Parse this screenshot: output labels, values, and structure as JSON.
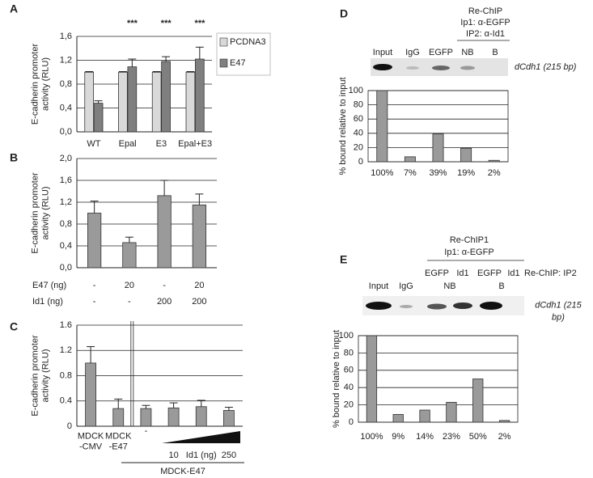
{
  "chart_data": [
    {
      "type": "bar",
      "panel": "A",
      "y_label": "E-cadherin promoter activity (RLU)",
      "categories": [
        "WT",
        "Epal",
        "E3",
        "Epal+E3"
      ],
      "series": [
        {
          "name": "PCDNA3",
          "color": "#d9d9d9",
          "values": [
            1.0,
            1.0,
            1.0,
            1.0
          ],
          "errors": [
            0.01,
            0.01,
            0.01,
            0.01
          ]
        },
        {
          "name": "E47",
          "color": "#7f7f7f",
          "values": [
            0.48,
            1.09,
            1.18,
            1.22
          ],
          "errors": [
            0.04,
            0.13,
            0.08,
            0.2
          ]
        }
      ],
      "significance": [
        null,
        "***",
        "***",
        "***"
      ],
      "ylim": [
        0,
        1.6
      ],
      "yticks": [
        {
          "value": 0,
          "label": "0,0"
        },
        {
          "value": 0.4,
          "label": "0,4"
        },
        {
          "value": 0.8,
          "label": "0,8"
        },
        {
          "value": 1.2,
          "label": "1,2"
        },
        {
          "value": 1.6,
          "label": "1,6"
        }
      ],
      "grid": true
    },
    {
      "type": "bar",
      "panel": "B",
      "y_label": "E-cadherin promoter activity (RLU)",
      "values": [
        1.0,
        0.46,
        1.32,
        1.15
      ],
      "errors": [
        0.22,
        0.1,
        0.28,
        0.2
      ],
      "color": "#9a9a9a",
      "conditions": [
        {
          "label": "E47 (ng)",
          "values": [
            "-",
            "20",
            "-",
            "20"
          ]
        },
        {
          "label": "Id1 (ng)",
          "values": [
            "-",
            "-",
            "200",
            "200"
          ]
        }
      ],
      "ylim": [
        0,
        2.0
      ],
      "yticks": [
        {
          "value": 0,
          "label": "0,0"
        },
        {
          "value": 0.4,
          "label": "0,4"
        },
        {
          "value": 0.8,
          "label": "0,8"
        },
        {
          "value": 1.2,
          "label": "1,2"
        },
        {
          "value": 1.6,
          "label": "1,6"
        },
        {
          "value": 2.0,
          "label": "2,0"
        }
      ],
      "grid": true
    },
    {
      "type": "bar",
      "panel": "C",
      "y_label": "E-cadherin promoter activity (RLU)",
      "categories": [
        "MDCK -CMV",
        "MDCK -E47",
        "-",
        "10",
        null,
        "250"
      ],
      "values": [
        1.0,
        0.28,
        0.28,
        0.29,
        0.31,
        0.25
      ],
      "errors": [
        0.26,
        0.15,
        0.05,
        0.08,
        0.1,
        0.05
      ],
      "color": "#9a9a9a",
      "wedge_label": "Id1 (ng)",
      "group_label": "MDCK-E47",
      "ylim": [
        0,
        1.6
      ],
      "yticks": [
        0,
        0.4,
        0.8,
        1.2,
        1.6
      ],
      "grid": true
    },
    {
      "type": "bar",
      "panel": "D",
      "y_label": "% bound relative to input",
      "gel": {
        "header": [
          "Re-ChIP",
          "Ip1: α-EGFP",
          "IP2: α-Id1"
        ],
        "lanes": [
          "Input",
          "IgG",
          "EGFP",
          "NB",
          "B"
        ],
        "band_label": "dCdh1 (215 bp)"
      },
      "values": [
        100,
        7,
        39,
        19,
        2
      ],
      "value_labels": [
        "100%",
        "7%",
        "39%",
        "19%",
        "2%"
      ],
      "color": "#9a9a9a",
      "ylim": [
        0,
        100
      ],
      "yticks": [
        0,
        20,
        40,
        60,
        80,
        100
      ],
      "grid": true
    },
    {
      "type": "bar",
      "panel": "E",
      "y_label": "% bound relative to input",
      "gel": {
        "header": [
          "Re-ChIP1",
          "Ip1:  α-EGFP"
        ],
        "lanes": [
          "Input",
          "IgG",
          "EGFP",
          "Id1",
          "EGFP",
          "Id1"
        ],
        "sub_lanes": [
          "NB",
          "B"
        ],
        "ip2_label": "Re-ChIP: IP2",
        "band_label": "dCdh1 (215 bp)"
      },
      "values": [
        100,
        9,
        14,
        23,
        50,
        2
      ],
      "value_labels": [
        "100%",
        "9%",
        "14%",
        "23%",
        "50%",
        "2%"
      ],
      "color": "#9a9a9a",
      "ylim": [
        0,
        100
      ],
      "yticks": [
        0,
        20,
        40,
        60,
        80,
        100
      ],
      "grid": true
    }
  ]
}
